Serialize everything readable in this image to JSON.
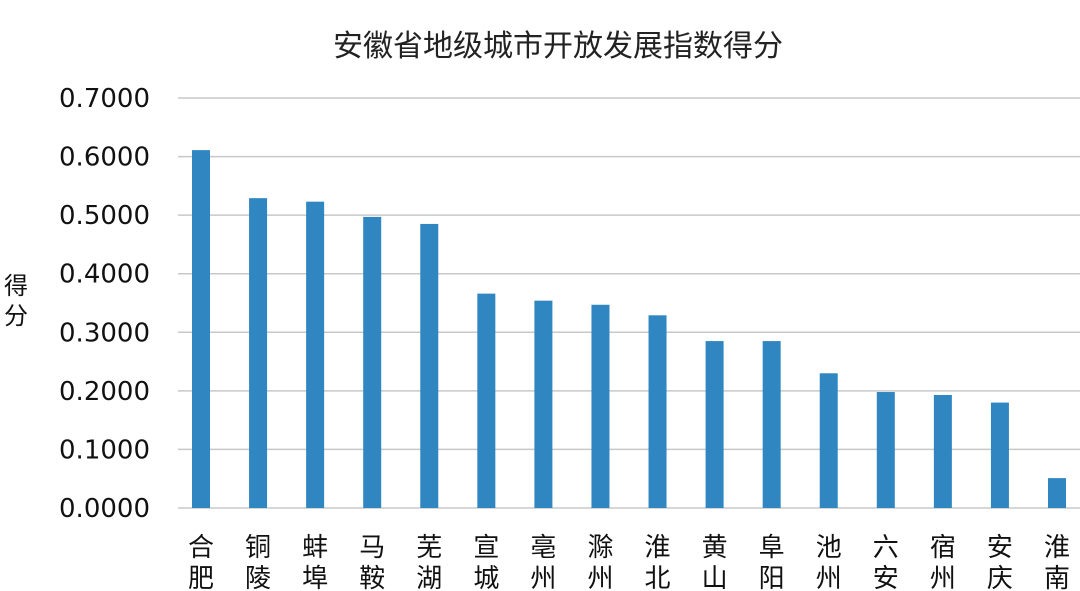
{
  "chart_data": {
    "type": "bar",
    "title": "安徽省地级城市开放发展指数得分",
    "ylabel": "得分",
    "xlabel": "",
    "ylim": [
      0,
      0.7
    ],
    "yticks": [
      "0.0000",
      "0.1000",
      "0.2000",
      "0.3000",
      "0.4000",
      "0.5000",
      "0.6000",
      "0.7000"
    ],
    "grid": true,
    "bar_color": "#2f86c1",
    "categories": [
      "合肥",
      "铜陵",
      "蚌埠",
      "马鞍",
      "芜湖",
      "宣城",
      "亳州",
      "滁州",
      "淮北",
      "黄山",
      "阜阳",
      "池州",
      "六安",
      "宿州",
      "安庆",
      "淮南"
    ],
    "values": [
      0.611,
      0.529,
      0.523,
      0.497,
      0.485,
      0.366,
      0.354,
      0.347,
      0.329,
      0.285,
      0.285,
      0.23,
      0.198,
      0.193,
      0.18,
      0.051
    ]
  }
}
